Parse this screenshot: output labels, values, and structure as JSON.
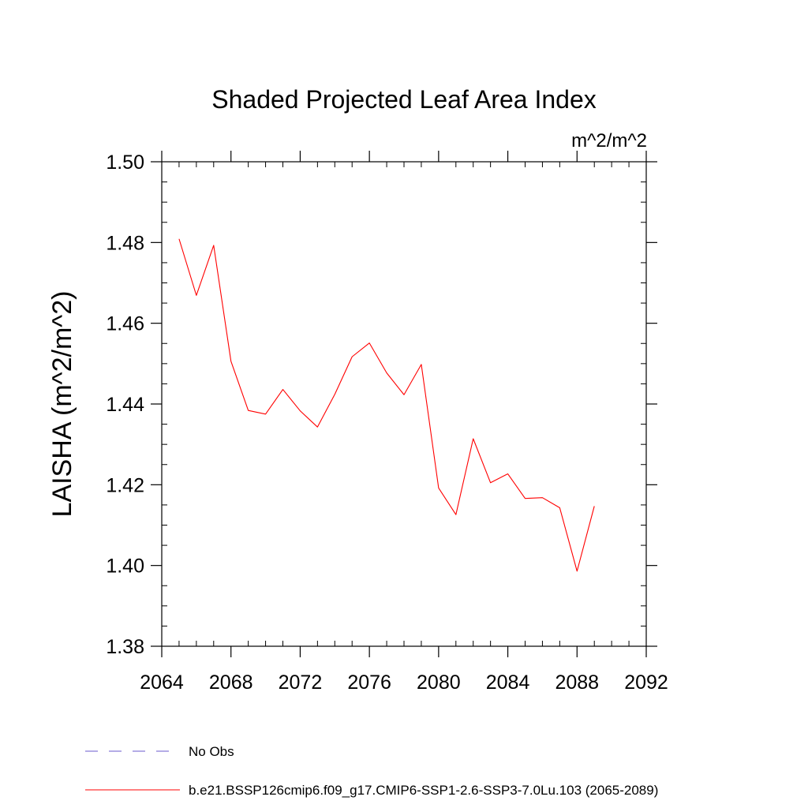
{
  "chart_data": {
    "type": "line",
    "title": "Shaded Projected Leaf Area Index",
    "units_label": "m^2/m^2",
    "xlabel": "",
    "ylabel": "LAISHA  (m^2/m^2)",
    "xlim": [
      2064,
      2092
    ],
    "ylim": [
      1.38,
      1.5
    ],
    "x_ticks": [
      "2064",
      "2068",
      "2072",
      "2076",
      "2080",
      "2084",
      "2088",
      "2092"
    ],
    "y_ticks": [
      "1.38",
      "1.40",
      "1.42",
      "1.44",
      "1.46",
      "1.48",
      "1.50"
    ],
    "grid": false,
    "legend_position": "bottom-left",
    "series": [
      {
        "name": "No Obs",
        "color": "#6a5acd",
        "style": "dashed",
        "x": [],
        "values": []
      },
      {
        "name": "b.e21.BSSP126cmip6.f09_g17.CMIP6-SSP1-2.6-SSP3-7.0Lu.103 (2065-2089)",
        "color": "#ff0000",
        "style": "solid",
        "x": [
          2065,
          2066,
          2067,
          2068,
          2069,
          2070,
          2071,
          2072,
          2073,
          2074,
          2075,
          2076,
          2077,
          2078,
          2079,
          2080,
          2081,
          2082,
          2083,
          2084,
          2085,
          2086,
          2087,
          2088,
          2089
        ],
        "values": [
          1.4809,
          1.4669,
          1.4793,
          1.4506,
          1.4384,
          1.4375,
          1.4436,
          1.4383,
          1.4343,
          1.4424,
          1.4517,
          1.4551,
          1.4477,
          1.4423,
          1.4498,
          1.4192,
          1.4126,
          1.4314,
          1.4205,
          1.4227,
          1.4166,
          1.4168,
          1.4143,
          1.3986,
          1.4147
        ]
      }
    ]
  }
}
